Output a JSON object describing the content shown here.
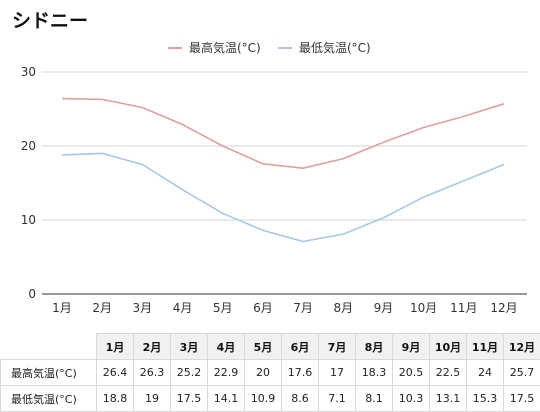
{
  "chart_data": {
    "type": "line",
    "title": "シドニー",
    "categories": [
      "1月",
      "2月",
      "3月",
      "4月",
      "5月",
      "6月",
      "7月",
      "8月",
      "9月",
      "10月",
      "11月",
      "12月"
    ],
    "series": [
      {
        "name": "最高気温(°C)",
        "color": "#e0a09c",
        "values": [
          26.4,
          26.3,
          25.2,
          22.9,
          20,
          17.6,
          17,
          18.3,
          20.5,
          22.5,
          24,
          25.7
        ]
      },
      {
        "name": "最低気温(°C)",
        "color": "#a9c6e8",
        "values": [
          18.8,
          19,
          17.5,
          14.1,
          10.9,
          8.6,
          7.1,
          8.1,
          10.3,
          13.1,
          15.3,
          17.5
        ]
      }
    ],
    "yticks": [
      0,
      10,
      20,
      30
    ],
    "ylim": [
      0,
      30
    ],
    "grid": true,
    "legend": "top-center"
  },
  "table": {
    "headers": [
      "1月",
      "2月",
      "3月",
      "4月",
      "5月",
      "6月",
      "7月",
      "8月",
      "9月",
      "10月",
      "11月",
      "12月"
    ],
    "rows": [
      {
        "label": "最高気温(°C)",
        "values": [
          "26.4",
          "26.3",
          "25.2",
          "22.9",
          "20",
          "17.6",
          "17",
          "18.3",
          "20.5",
          "22.5",
          "24",
          "25.7"
        ]
      },
      {
        "label": "最低気温(°C)",
        "values": [
          "18.8",
          "19",
          "17.5",
          "14.1",
          "10.9",
          "8.6",
          "7.1",
          "8.1",
          "10.3",
          "13.1",
          "15.3",
          "17.5"
        ]
      }
    ]
  }
}
